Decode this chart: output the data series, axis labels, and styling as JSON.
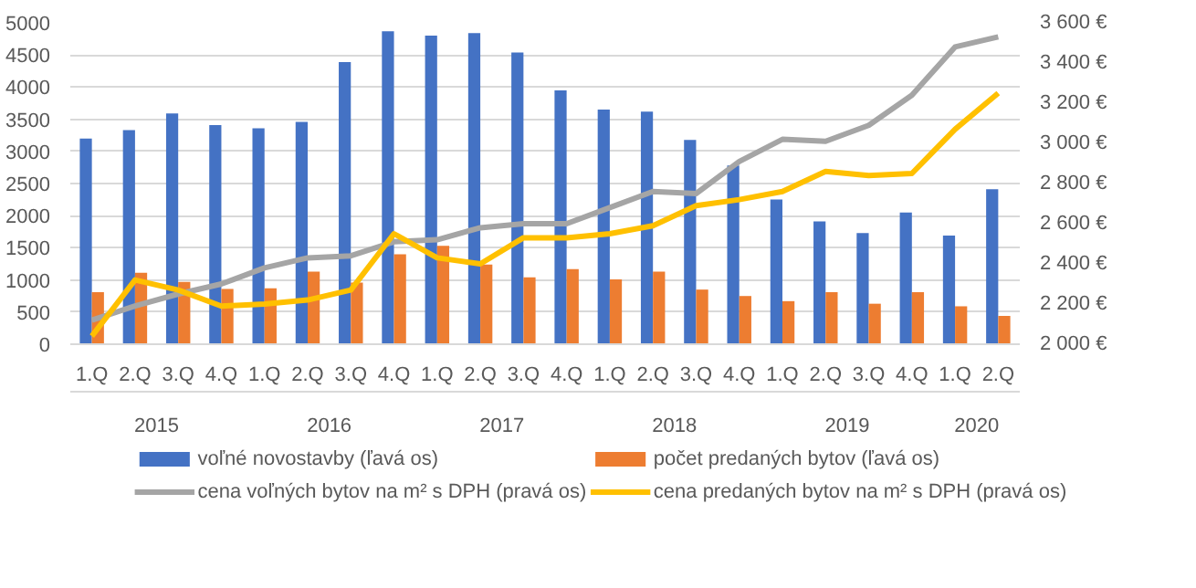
{
  "chart_data": {
    "type": "bar",
    "categories": [
      "1.Q",
      "2.Q",
      "3.Q",
      "4.Q",
      "1.Q",
      "2.Q",
      "3.Q",
      "4.Q",
      "1.Q",
      "2.Q",
      "3.Q",
      "4.Q",
      "1.Q",
      "2.Q",
      "3.Q",
      "4.Q",
      "1.Q",
      "2.Q",
      "3.Q",
      "4.Q",
      "1.Q",
      "2.Q"
    ],
    "annotations": [
      "2015",
      "2016",
      "2017",
      "2018",
      "2019",
      "2020"
    ],
    "series": [
      {
        "name": "voľné novostavby (ľavá os)",
        "color": "#4472c4",
        "values": [
          3200,
          3330,
          3590,
          3410,
          3360,
          3460,
          4390,
          4870,
          4800,
          4840,
          4540,
          3950,
          3650,
          3620,
          3180,
          2780,
          2250,
          1910,
          1730,
          2050,
          1690,
          2410
        ]
      },
      {
        "name": "počet predaných bytov (ľavá os)",
        "color": "#ed7d31",
        "values": [
          810,
          1110,
          970,
          860,
          870,
          1130,
          960,
          1400,
          1530,
          1240,
          1040,
          1170,
          1010,
          1130,
          850,
          750,
          670,
          810,
          630,
          810,
          590,
          440
        ]
      },
      {
        "name": "cena voľných bytov na m² s DPH (pravá os)",
        "type": "line",
        "axis": "y2",
        "color": "#a5a5a5",
        "values": [
          2120,
          2190,
          2250,
          2300,
          2380,
          2430,
          2440,
          2510,
          2520,
          2580,
          2600,
          2600,
          2680,
          2760,
          2750,
          2910,
          3020,
          3010,
          3090,
          3240,
          3480,
          3530
        ]
      },
      {
        "name": "cena predaných bytov na m² s  DPH (pravá os)",
        "type": "line",
        "axis": "y2",
        "color": "#ffc000",
        "values": [
          2040,
          2320,
          2270,
          2190,
          2200,
          2220,
          2270,
          2550,
          2430,
          2400,
          2530,
          2530,
          2550,
          2590,
          2690,
          2720,
          2760,
          2860,
          2840,
          2850,
          3070,
          3250
        ]
      }
    ],
    "ylim": [
      0,
      5000
    ],
    "yticks": [
      0,
      500,
      1000,
      1500,
      2000,
      2500,
      3000,
      3500,
      4000,
      4500,
      5000
    ],
    "y2lim": [
      2000,
      3600
    ],
    "y2ticks": [
      {
        "value": 2000,
        "label": "2 000 €"
      },
      {
        "value": 2200,
        "label": "2 200 €"
      },
      {
        "value": 2400,
        "label": "2 400 €"
      },
      {
        "value": 2600,
        "label": "2 600 €"
      },
      {
        "value": 2800,
        "label": "2 800 €"
      },
      {
        "value": 3000,
        "label": "3 000 €"
      },
      {
        "value": 3200,
        "label": "3 200 €"
      },
      {
        "value": 3400,
        "label": "3 400 €"
      },
      {
        "value": 3600,
        "label": "3 600 €"
      }
    ],
    "grid": "y",
    "legend": "bottom"
  }
}
